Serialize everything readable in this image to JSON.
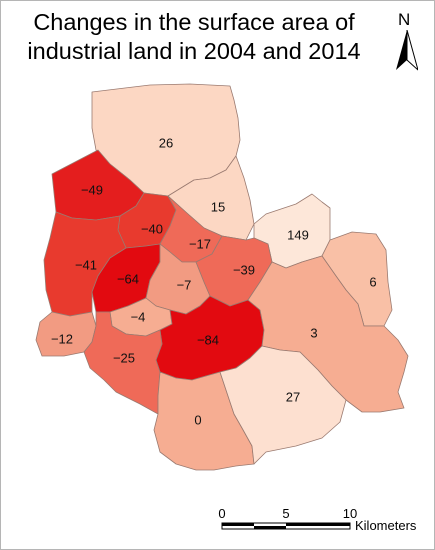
{
  "title_line1": "Changes in the surface area of",
  "title_line2": "industrial land in 2004 and 2014",
  "north_letter": "N",
  "districts": [
    {
      "id": "north",
      "label": "26"
    },
    {
      "id": "northeast-center",
      "label": "15"
    },
    {
      "id": "east-bulge",
      "label": "149"
    },
    {
      "id": "northwest",
      "label": "−49"
    },
    {
      "id": "center-north",
      "label": "−40"
    },
    {
      "id": "center-east",
      "label": "−17"
    },
    {
      "id": "west",
      "label": "−41"
    },
    {
      "id": "center-west",
      "label": "−64"
    },
    {
      "id": "center",
      "label": "−7"
    },
    {
      "id": "east-center",
      "label": "−39"
    },
    {
      "id": "far-east",
      "label": "6"
    },
    {
      "id": "south-center-west",
      "label": "−4"
    },
    {
      "id": "southwest-edge",
      "label": "−12"
    },
    {
      "id": "south-center",
      "label": "−84"
    },
    {
      "id": "southeast",
      "label": "3"
    },
    {
      "id": "southwest",
      "label": "−25"
    },
    {
      "id": "south",
      "label": "0"
    },
    {
      "id": "south-east",
      "label": "27"
    }
  ],
  "scale": {
    "tick0": "0",
    "tick1": "5",
    "tick2": "10",
    "unit": "Kilometers"
  },
  "colors": {
    "lightest": "#fde0d0",
    "light": "#f9c0a6",
    "medium": "#f29b82",
    "medium_dark": "#ef6a58",
    "dark": "#e83a2e",
    "darkest": "#e20a10",
    "border": "#8a6a60"
  }
}
